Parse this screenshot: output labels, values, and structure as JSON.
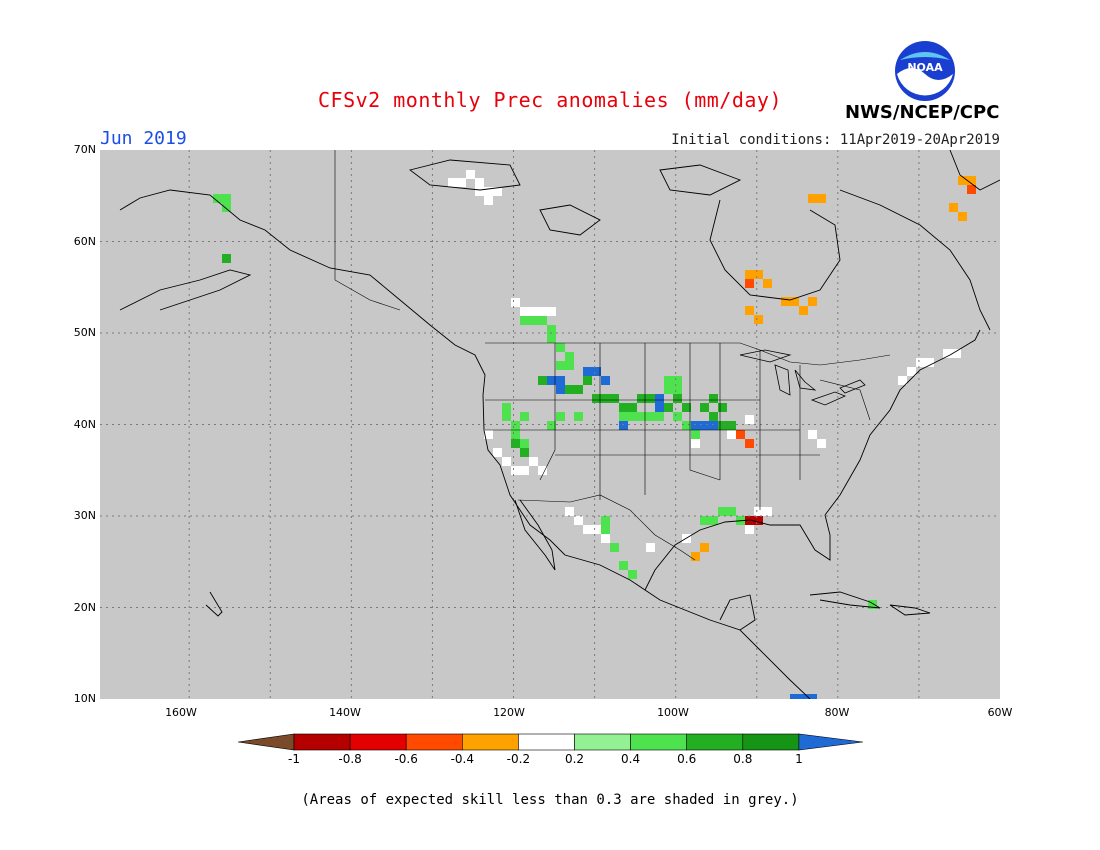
{
  "title": "CFSv2 monthly Prec anomalies (mm/day)",
  "month": "Jun 2019",
  "agency": "NWS/NCEP/CPC",
  "logo_text": "NOAA",
  "initial_conditions": "Initial conditions: 11Apr2019-20Apr2019",
  "note": "(Areas of expected skill less than 0.3 are shaded in grey.)",
  "map": {
    "lon_range": [
      -171,
      -60
    ],
    "lat_range": [
      10,
      70
    ],
    "lat_labels": [
      "70N",
      "60N",
      "50N",
      "40N",
      "30N",
      "20N",
      "10N"
    ],
    "lon_labels": [
      "160W",
      "140W",
      "120W",
      "100W",
      "80W",
      "60W"
    ],
    "background_color": "#c8c8c8"
  },
  "colorbar": {
    "labels": [
      "-1",
      "-0.8",
      "-0.6",
      "-0.4",
      "-0.2",
      "0.2",
      "0.4",
      "0.6",
      "0.8",
      "1"
    ],
    "colors": [
      "#7a4a2a",
      "#b50000",
      "#e30000",
      "#ff4a00",
      "#ffa200",
      "#ffffff",
      "#93f093",
      "#4fe24f",
      "#22b022",
      "#159415",
      "#1f6bd6"
    ]
  }
}
